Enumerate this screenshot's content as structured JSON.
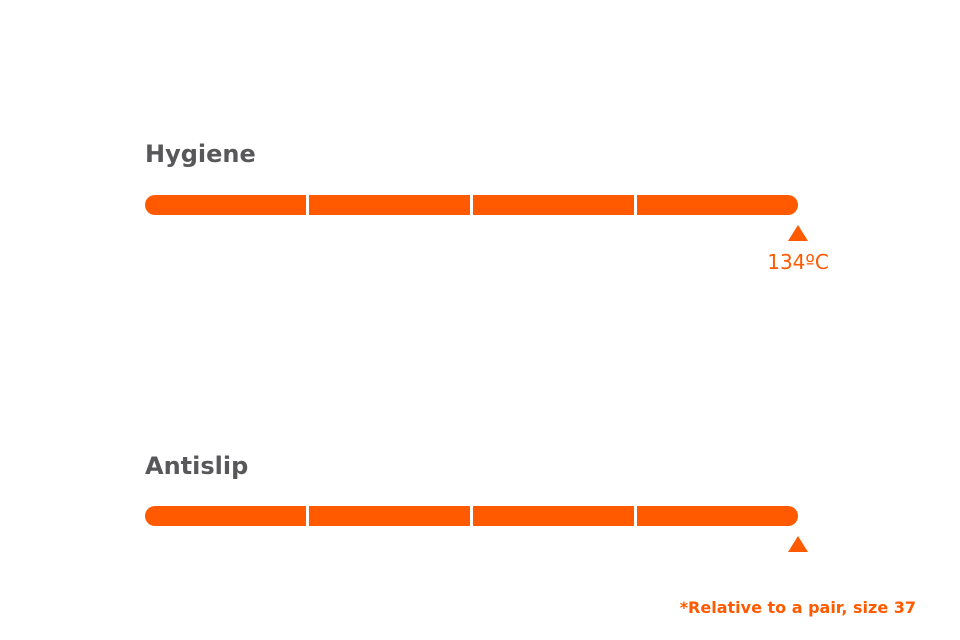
{
  "items": [
    {
      "label": "Hygiene",
      "marker_label": "134ºC"
    },
    {
      "label": "Antislip"
    }
  ],
  "footnote": "*Relative to a pair, size 37"
}
